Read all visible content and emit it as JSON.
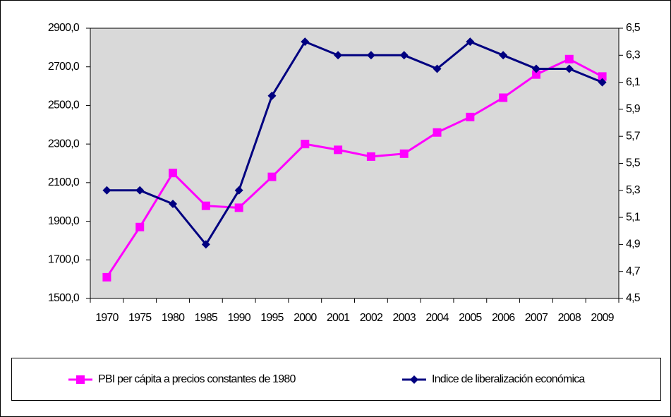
{
  "chart_data": {
    "type": "line",
    "categories": [
      "1970",
      "1975",
      "1980",
      "1985",
      "1990",
      "1995",
      "2000",
      "2001",
      "2002",
      "2003",
      "2004",
      "2005",
      "2006",
      "2007",
      "2008",
      "2009"
    ],
    "series": [
      {
        "name": "PBI per cápita a precios constantes de 1980",
        "color": "#ff00ff",
        "marker": "square",
        "values": [
          1610,
          1870,
          2150,
          1980,
          1970,
          2130,
          2300,
          2270,
          2235,
          2250,
          2360,
          2440,
          2540,
          2660,
          2740,
          2650
        ]
      },
      {
        "name": "Indice de liberalización económica",
        "color": "#000080",
        "marker": "diamond",
        "axis": "y2",
        "values": [
          5.3,
          5.3,
          5.2,
          4.9,
          5.3,
          6.0,
          6.4,
          6.3,
          6.3,
          6.3,
          6.2,
          6.4,
          6.3,
          6.2,
          6.2,
          6.1
        ]
      }
    ],
    "ylim": [
      1500,
      2900
    ],
    "yticks": [
      {
        "value": 1500,
        "label": "1500,0"
      },
      {
        "value": 1700,
        "label": "1700,0"
      },
      {
        "value": 1900,
        "label": "1900,0"
      },
      {
        "value": 2100,
        "label": "2100,0"
      },
      {
        "value": 2300,
        "label": "2300,0"
      },
      {
        "value": 2500,
        "label": "2500,0"
      },
      {
        "value": 2700,
        "label": "2700,0"
      },
      {
        "value": 2900,
        "label": "2900,0"
      }
    ],
    "y2lim": [
      4.5,
      6.5
    ],
    "y2ticks": [
      {
        "value": 4.5,
        "label": "4,5"
      },
      {
        "value": 4.7,
        "label": "4,7"
      },
      {
        "value": 4.9,
        "label": "4,9"
      },
      {
        "value": 5.1,
        "label": "5,1"
      },
      {
        "value": 5.3,
        "label": "5,3"
      },
      {
        "value": 5.5,
        "label": "5,5"
      },
      {
        "value": 5.7,
        "label": "5,7"
      },
      {
        "value": 5.9,
        "label": "5,9"
      },
      {
        "value": 6.1,
        "label": "6,1"
      },
      {
        "value": 6.3,
        "label": "6,3"
      },
      {
        "value": 6.5,
        "label": "6,5"
      }
    ],
    "plot_background": "#d9d9d9",
    "grid": false,
    "legend": "bottom"
  }
}
